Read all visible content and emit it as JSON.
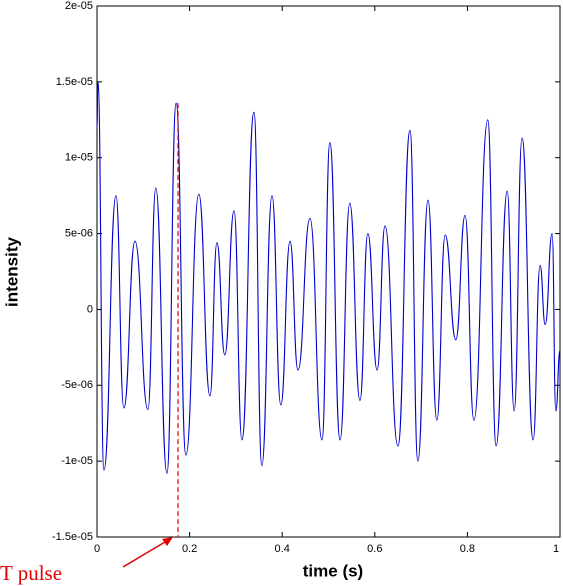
{
  "chart_data": {
    "type": "line",
    "xlabel": "time (s)",
    "ylabel": "intensity",
    "x": [
      0,
      0.002,
      0.015,
      0.041,
      0.058,
      0.082,
      0.11,
      0.127,
      0.151,
      0.171,
      0.192,
      0.22,
      0.244,
      0.259,
      0.276,
      0.296,
      0.313,
      0.339,
      0.356,
      0.378,
      0.397,
      0.417,
      0.434,
      0.46,
      0.486,
      0.503,
      0.525,
      0.546,
      0.568,
      0.585,
      0.605,
      0.622,
      0.65,
      0.676,
      0.693,
      0.715,
      0.734,
      0.752,
      0.775,
      0.795,
      0.814,
      0.844,
      0.862,
      0.886,
      0.901,
      0.918,
      0.942,
      0.957,
      0.968,
      0.983,
      0.991,
      1
    ],
    "series": [
      {
        "color": "#0000cc",
        "values": [
          1.2e-05,
          1.5e-05,
          -1.06e-05,
          7.5e-06,
          -6.5e-06,
          4.5e-06,
          -6.6e-06,
          8e-06,
          -1.08e-05,
          1.36e-05,
          -9.6e-06,
          7.6e-06,
          -5.7e-06,
          4.4e-06,
          -3e-06,
          6.5e-06,
          -8.6e-06,
          1.3e-05,
          -1.03e-05,
          7.5e-06,
          -6.3e-06,
          4.5e-06,
          -4e-06,
          6e-06,
          -8.6e-06,
          1.1e-05,
          -8.6e-06,
          7e-06,
          -6e-06,
          5e-06,
          -4e-06,
          5.5e-06,
          -9e-06,
          1.18e-05,
          -1e-05,
          7.2e-06,
          -7.3e-06,
          4.9e-06,
          -2e-06,
          6.2e-06,
          -7.3e-06,
          1.25e-05,
          -9e-06,
          7.8e-06,
          -6.7e-06,
          1.13e-05,
          -8.6e-06,
          2.9e-06,
          -1e-06,
          5e-06,
          -6.7e-06,
          -2.7e-06
        ]
      }
    ],
    "xlim": [
      0,
      1
    ],
    "xticks": [
      0,
      0.2,
      0.4,
      0.6,
      0.8,
      1
    ],
    "ylim": [
      -1.5e-05,
      2e-05
    ],
    "yticks": [
      {
        "value": -1.5e-05,
        "label": "-1.5e-05"
      },
      {
        "value": -1e-05,
        "label": "-1e-05"
      },
      {
        "value": -5e-06,
        "label": "-5e-06"
      },
      {
        "value": 0,
        "label": "0"
      },
      {
        "value": 5e-06,
        "label": "5e-06"
      },
      {
        "value": 1e-05,
        "label": "1e-05"
      },
      {
        "value": 1.5e-05,
        "label": "1.5e-05"
      },
      {
        "value": 2e-05,
        "label": "2e-05"
      }
    ],
    "annotation": {
      "text": "T pulse",
      "x": 0.175,
      "y": 1.36e-05,
      "color": "#e00000"
    }
  }
}
